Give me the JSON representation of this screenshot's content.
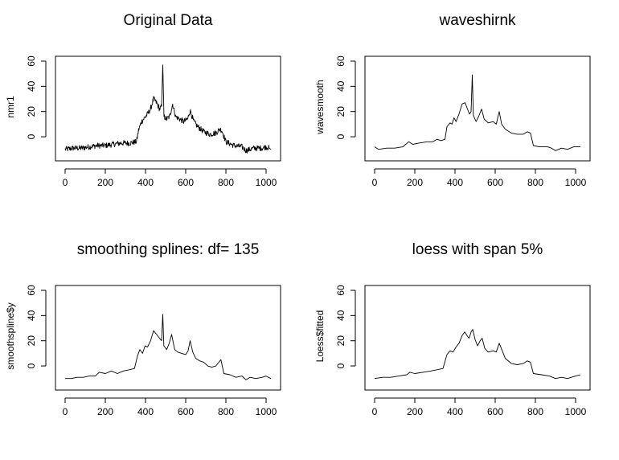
{
  "chart_data": [
    {
      "type": "line",
      "title": "Original Data",
      "ylabel": "nmr1",
      "xlabel": "",
      "xlim": [
        0,
        1024
      ],
      "ylim": [
        -14,
        60
      ],
      "xticks": [
        0,
        200,
        400,
        600,
        800,
        1000
      ],
      "yticks": [
        0,
        20,
        40,
        60
      ],
      "grid": false,
      "noisy": true,
      "points": [
        [
          0,
          -10
        ],
        [
          40,
          -9
        ],
        [
          80,
          -9
        ],
        [
          120,
          -8
        ],
        [
          160,
          -7
        ],
        [
          200,
          -7
        ],
        [
          240,
          -6
        ],
        [
          280,
          -5
        ],
        [
          320,
          -5
        ],
        [
          355,
          -4
        ],
        [
          365,
          5
        ],
        [
          380,
          12
        ],
        [
          395,
          15
        ],
        [
          410,
          18
        ],
        [
          425,
          22
        ],
        [
          440,
          30
        ],
        [
          455,
          27
        ],
        [
          470,
          22
        ],
        [
          480,
          24
        ],
        [
          486,
          57
        ],
        [
          492,
          16
        ],
        [
          505,
          14
        ],
        [
          520,
          16
        ],
        [
          535,
          26
        ],
        [
          550,
          16
        ],
        [
          570,
          14
        ],
        [
          590,
          12
        ],
        [
          610,
          14
        ],
        [
          622,
          21
        ],
        [
          640,
          12
        ],
        [
          660,
          8
        ],
        [
          690,
          4
        ],
        [
          720,
          2
        ],
        [
          750,
          3
        ],
        [
          770,
          6
        ],
        [
          780,
          5
        ],
        [
          800,
          -4
        ],
        [
          840,
          -7
        ],
        [
          880,
          -8
        ],
        [
          900,
          -11
        ],
        [
          940,
          -9
        ],
        [
          980,
          -9
        ],
        [
          1000,
          -8
        ],
        [
          1015,
          -9
        ],
        [
          1024,
          -10
        ]
      ]
    },
    {
      "type": "line",
      "title": "waveshirnk",
      "ylabel": "wavesmooth",
      "xlabel": "",
      "xlim": [
        0,
        1024
      ],
      "ylim": [
        -14,
        60
      ],
      "xticks": [
        0,
        200,
        400,
        600,
        800,
        1000
      ],
      "yticks": [
        0,
        20,
        40,
        60
      ],
      "grid": false,
      "noisy": false,
      "points": [
        [
          0,
          -8
        ],
        [
          20,
          -10
        ],
        [
          60,
          -9
        ],
        [
          100,
          -9
        ],
        [
          140,
          -8
        ],
        [
          170,
          -4
        ],
        [
          190,
          -6
        ],
        [
          220,
          -5
        ],
        [
          260,
          -4
        ],
        [
          290,
          -4
        ],
        [
          310,
          -2
        ],
        [
          330,
          -3
        ],
        [
          350,
          -2
        ],
        [
          360,
          8
        ],
        [
          375,
          11
        ],
        [
          385,
          10
        ],
        [
          395,
          15
        ],
        [
          405,
          12
        ],
        [
          420,
          18
        ],
        [
          435,
          26
        ],
        [
          450,
          27
        ],
        [
          462,
          22
        ],
        [
          472,
          18
        ],
        [
          480,
          20
        ],
        [
          486,
          49
        ],
        [
          491,
          17
        ],
        [
          505,
          12
        ],
        [
          520,
          17
        ],
        [
          532,
          22
        ],
        [
          545,
          14
        ],
        [
          565,
          11
        ],
        [
          590,
          12
        ],
        [
          605,
          10
        ],
        [
          620,
          20
        ],
        [
          632,
          10
        ],
        [
          650,
          6
        ],
        [
          680,
          3
        ],
        [
          710,
          2
        ],
        [
          740,
          2
        ],
        [
          760,
          4
        ],
        [
          775,
          3
        ],
        [
          790,
          -7
        ],
        [
          820,
          -8
        ],
        [
          860,
          -8
        ],
        [
          880,
          -9
        ],
        [
          900,
          -11
        ],
        [
          930,
          -9
        ],
        [
          960,
          -10
        ],
        [
          990,
          -8
        ],
        [
          1024,
          -8
        ]
      ]
    },
    {
      "type": "line",
      "title": "smoothing splines: df= 135",
      "ylabel": "smoothspline$y",
      "xlabel": "",
      "xlim": [
        0,
        1024
      ],
      "ylim": [
        -14,
        60
      ],
      "xticks": [
        0,
        200,
        400,
        600,
        800,
        1000
      ],
      "yticks": [
        0,
        20,
        40,
        60
      ],
      "grid": false,
      "noisy": false,
      "points": [
        [
          0,
          -10
        ],
        [
          30,
          -10
        ],
        [
          60,
          -9
        ],
        [
          90,
          -9
        ],
        [
          120,
          -8
        ],
        [
          150,
          -8
        ],
        [
          170,
          -5
        ],
        [
          200,
          -6
        ],
        [
          230,
          -4
        ],
        [
          260,
          -6
        ],
        [
          290,
          -4
        ],
        [
          320,
          -3
        ],
        [
          345,
          -2
        ],
        [
          360,
          8
        ],
        [
          372,
          13
        ],
        [
          385,
          10
        ],
        [
          398,
          16
        ],
        [
          410,
          15
        ],
        [
          425,
          20
        ],
        [
          440,
          28
        ],
        [
          455,
          25
        ],
        [
          470,
          22
        ],
        [
          480,
          20
        ],
        [
          486,
          41
        ],
        [
          491,
          16
        ],
        [
          505,
          13
        ],
        [
          518,
          18
        ],
        [
          530,
          25
        ],
        [
          545,
          13
        ],
        [
          560,
          11
        ],
        [
          580,
          10
        ],
        [
          600,
          9
        ],
        [
          612,
          12
        ],
        [
          622,
          20
        ],
        [
          635,
          11
        ],
        [
          650,
          6
        ],
        [
          670,
          4
        ],
        [
          690,
          3
        ],
        [
          710,
          0
        ],
        [
          730,
          -1
        ],
        [
          750,
          0
        ],
        [
          765,
          3
        ],
        [
          775,
          5
        ],
        [
          790,
          -6
        ],
        [
          820,
          -7
        ],
        [
          850,
          -9
        ],
        [
          880,
          -8
        ],
        [
          900,
          -11
        ],
        [
          920,
          -9
        ],
        [
          950,
          -10
        ],
        [
          980,
          -9
        ],
        [
          1000,
          -8
        ],
        [
          1024,
          -10
        ]
      ]
    },
    {
      "type": "line",
      "title": "loess with span 5%",
      "ylabel": "Loess$fitted",
      "xlabel": "",
      "xlim": [
        0,
        1024
      ],
      "ylim": [
        -14,
        60
      ],
      "xticks": [
        0,
        200,
        400,
        600,
        800,
        1000
      ],
      "yticks": [
        0,
        20,
        40,
        60
      ],
      "grid": false,
      "noisy": false,
      "points": [
        [
          0,
          -10
        ],
        [
          40,
          -9
        ],
        [
          80,
          -9
        ],
        [
          120,
          -8
        ],
        [
          160,
          -7
        ],
        [
          175,
          -5
        ],
        [
          200,
          -6
        ],
        [
          240,
          -5
        ],
        [
          280,
          -4
        ],
        [
          310,
          -3
        ],
        [
          340,
          -2
        ],
        [
          360,
          9
        ],
        [
          375,
          12
        ],
        [
          390,
          11
        ],
        [
          405,
          15
        ],
        [
          420,
          18
        ],
        [
          435,
          24
        ],
        [
          448,
          27
        ],
        [
          460,
          24
        ],
        [
          470,
          22
        ],
        [
          480,
          27
        ],
        [
          488,
          29
        ],
        [
          500,
          21
        ],
        [
          512,
          16
        ],
        [
          525,
          20
        ],
        [
          535,
          22
        ],
        [
          548,
          14
        ],
        [
          565,
          11
        ],
        [
          590,
          12
        ],
        [
          605,
          11
        ],
        [
          620,
          18
        ],
        [
          635,
          12
        ],
        [
          650,
          6
        ],
        [
          680,
          2
        ],
        [
          710,
          1
        ],
        [
          740,
          2
        ],
        [
          760,
          4
        ],
        [
          775,
          3
        ],
        [
          790,
          -6
        ],
        [
          830,
          -7
        ],
        [
          870,
          -8
        ],
        [
          900,
          -10
        ],
        [
          930,
          -9
        ],
        [
          960,
          -10
        ],
        [
          1000,
          -8
        ],
        [
          1024,
          -7
        ]
      ]
    }
  ]
}
